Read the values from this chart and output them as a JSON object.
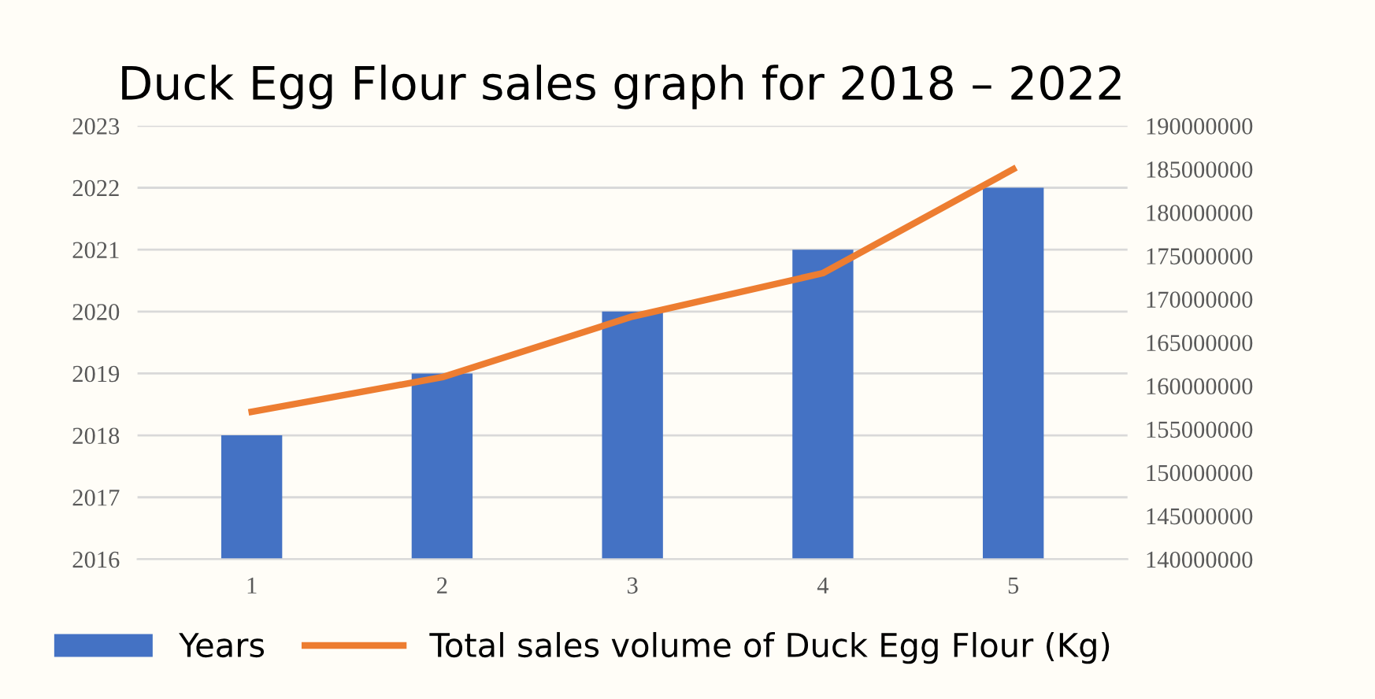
{
  "chart_data": {
    "type": "bar",
    "title": "Duck Egg Flour sales graph for 2018 – 2022",
    "categories": [
      "1",
      "2",
      "3",
      "4",
      "5"
    ],
    "series": [
      {
        "name": "Years",
        "color": "#4472c4",
        "values": [
          2018,
          2019,
          2020,
          2021,
          2022
        ]
      },
      {
        "name": "Total sales volume of Duck Egg Flour (Kg)",
        "type": "line",
        "axis": "y2",
        "color": "#ed7d31",
        "values": [
          157000000,
          161000000,
          168000000,
          173000000,
          185000000
        ]
      }
    ],
    "ylim": [
      2016,
      2023
    ],
    "yticks": [
      2016,
      2017,
      2018,
      2019,
      2020,
      2021,
      2022,
      2023
    ],
    "y2lim": [
      140000000,
      190000000
    ],
    "y2ticks": [
      140000000,
      145000000,
      150000000,
      155000000,
      160000000,
      165000000,
      170000000,
      175000000,
      180000000,
      185000000,
      190000000
    ],
    "grid": "y",
    "legend": "bottom",
    "marker": "none",
    "line_style": "solid"
  }
}
